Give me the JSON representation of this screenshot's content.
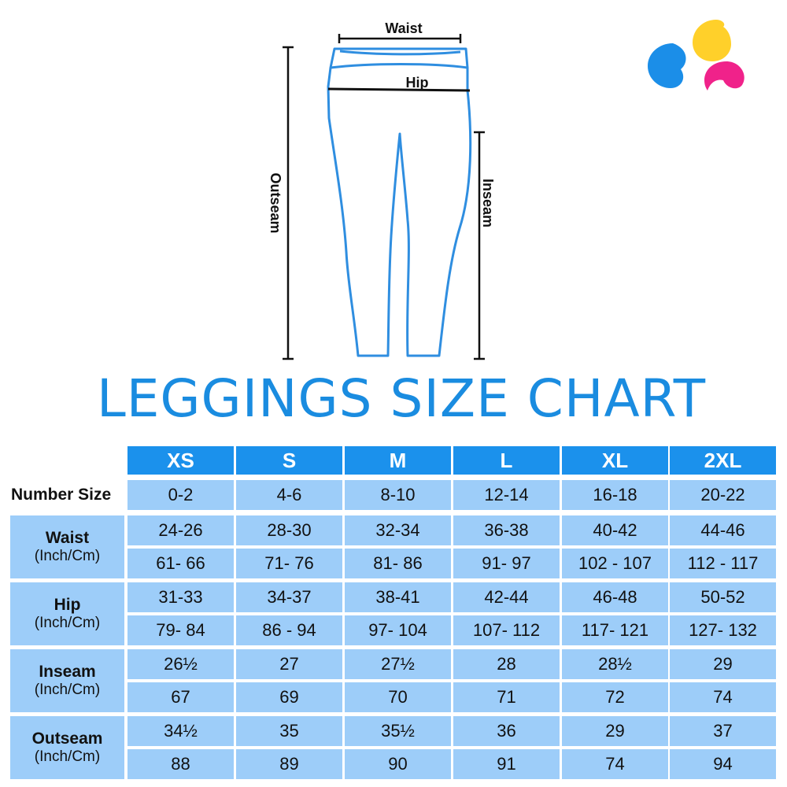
{
  "diagram": {
    "labels": {
      "waist": "Waist",
      "hip": "Hip",
      "outseam": "Outseam",
      "inseam": "Inseam"
    },
    "outline_color": "#2f8ee0"
  },
  "logo": {
    "colors": [
      "#1b8ee8",
      "#ffd02a",
      "#f0228a"
    ]
  },
  "title": "LEGGINGS SIZE CHART",
  "colors": {
    "header": "#1b91ec",
    "cell": "#9dcdf9",
    "title": "#1a8ce0"
  },
  "table": {
    "sizes": [
      "XS",
      "S",
      "M",
      "L",
      "XL",
      "2XL"
    ],
    "number_size_label": "Number Size",
    "number_sizes": [
      "0-2",
      "4-6",
      "8-10",
      "12-14",
      "16-18",
      "20-22"
    ],
    "unit_label": "(Inch/Cm)",
    "rows": [
      {
        "label": "Waist",
        "inch": [
          "24-26",
          "28-30",
          "32-34",
          "36-38",
          "40-42",
          "44-46"
        ],
        "cm": [
          "61- 66",
          "71- 76",
          "81- 86",
          "91- 97",
          "102 - 107",
          "112 - 117"
        ]
      },
      {
        "label": "Hip",
        "inch": [
          "31-33",
          "34-37",
          "38-41",
          "42-44",
          "46-48",
          "50-52"
        ],
        "cm": [
          "79- 84",
          "86 - 94",
          "97- 104",
          "107- 112",
          "117- 121",
          "127- 132"
        ]
      },
      {
        "label": "Inseam",
        "inch": [
          "26½",
          "27",
          "27½",
          "28",
          "28½",
          "29"
        ],
        "cm": [
          "67",
          "69",
          "70",
          "71",
          "72",
          "74"
        ]
      },
      {
        "label": "Outseam",
        "inch": [
          "34½",
          "35",
          "35½",
          "36",
          "29",
          "37"
        ],
        "cm": [
          "88",
          "89",
          "90",
          "91",
          "74",
          "94"
        ]
      }
    ]
  }
}
